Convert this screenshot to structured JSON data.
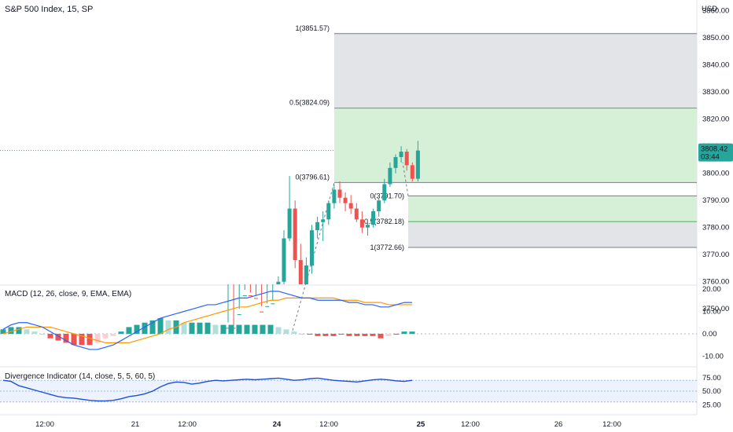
{
  "header": {
    "title": "S&P 500 Index, 15, SP",
    "currency": "USD"
  },
  "colors": {
    "up": "#26a69a",
    "down": "#ef5350",
    "fib_green": "#4caf50",
    "fib_green_fill": "#d6f0d8",
    "fib_grey_fill": "#e3e4e8",
    "macd_line": "#2962ff",
    "signal_line": "#ff9800",
    "divergence_line": "#1e4fd8",
    "price_tag": "#26a69a"
  },
  "price_pane": {
    "y_ticks": [
      "3850.00",
      "3840.00",
      "3830.00",
      "3820.00",
      "3810.00",
      "3800.00",
      "3790.00",
      "3780.00",
      "3770.00",
      "3760.00",
      "3750.00"
    ],
    "top_cut_tick": "3860.00",
    "last_price": "3808.42",
    "countdown": "03:44",
    "candles": [
      [
        3741,
        3745,
        3738,
        3743
      ],
      [
        3743,
        3744,
        3737,
        3739
      ],
      [
        3739,
        3750,
        3738,
        3748
      ],
      [
        3748,
        3757,
        3746,
        3755
      ],
      [
        3755,
        3756,
        3750,
        3754
      ],
      [
        3754,
        3755,
        3748,
        3749
      ],
      [
        3749,
        3751,
        3744,
        3746
      ],
      [
        3746,
        3752,
        3744,
        3751
      ],
      [
        3751,
        3753,
        3748,
        3752
      ],
      [
        3752,
        3762,
        3751,
        3760
      ],
      [
        3760,
        3779,
        3759,
        3776
      ],
      [
        3776,
        3799,
        3775,
        3787
      ],
      [
        3787,
        3790,
        3765,
        3768
      ],
      [
        3768,
        3774,
        3744,
        3758
      ],
      [
        3758,
        3769,
        3752,
        3766
      ],
      [
        3766,
        3781,
        3763,
        3779
      ],
      [
        3779,
        3784,
        3776,
        3782
      ],
      [
        3782,
        3786,
        3775,
        3783
      ],
      [
        3783,
        3790,
        3781,
        3789
      ],
      [
        3789,
        3796,
        3787,
        3794
      ],
      [
        3794,
        3797,
        3789,
        3791
      ],
      [
        3791,
        3793,
        3786,
        3789
      ],
      [
        3789,
        3792,
        3785,
        3787
      ],
      [
        3787,
        3789,
        3782,
        3783
      ],
      [
        3783,
        3786,
        3778,
        3780
      ],
      [
        3780,
        3783,
        3777,
        3781
      ],
      [
        3781,
        3787,
        3780,
        3786
      ],
      [
        3786,
        3791,
        3784,
        3790
      ],
      [
        3790,
        3798,
        3789,
        3796
      ],
      [
        3796,
        3804,
        3795,
        3802
      ],
      [
        3802,
        3807,
        3800,
        3806
      ],
      [
        3806,
        3810,
        3804,
        3808
      ],
      [
        3808,
        3809,
        3801,
        3803
      ],
      [
        3803,
        3804,
        3797,
        3798
      ],
      [
        3798,
        3812,
        3797,
        3808.42
      ]
    ],
    "fib_upper": {
      "level_1_label": "1(3851.57)",
      "level_05_label": "0.5(3824.09)",
      "level_0_label": "0(3796.61)",
      "level_1": 3851.57,
      "level_05": 3824.09,
      "level_0": 3796.61
    },
    "fib_lower": {
      "level_0_label": "0(3791.70)",
      "level_05_label": "0.5(3782.18)",
      "level_1_label": "1(3772.66)",
      "level_0": 3791.7,
      "level_05": 3782.18,
      "level_1": 3772.66
    }
  },
  "macd_pane": {
    "label": "MACD (12, 26, close, 9, EMA, EMA)",
    "y_ticks": [
      "20.00",
      "10.00",
      "0.00",
      "-10.00"
    ],
    "macd": [
      2,
      4,
      5,
      5,
      4,
      3,
      1,
      -1,
      -3,
      -5,
      -6,
      -7,
      -7,
      -6,
      -5,
      -3,
      -1,
      1,
      3,
      5,
      7,
      8,
      9,
      10,
      11,
      12,
      13,
      13,
      14,
      15,
      16,
      16,
      17,
      18,
      19,
      19,
      18,
      17,
      16,
      16,
      15,
      15,
      15,
      15,
      14,
      14,
      13,
      13,
      12,
      12,
      13,
      14,
      14
    ],
    "signal": [
      0,
      1,
      2,
      3,
      3,
      3,
      3,
      2,
      1,
      0,
      -1,
      -2,
      -3,
      -4,
      -4,
      -4,
      -4,
      -3,
      -2,
      -1,
      0,
      2,
      3,
      5,
      6,
      7,
      8,
      9,
      10,
      11,
      12,
      12,
      13,
      14,
      15,
      15,
      16,
      16,
      16,
      16,
      16,
      16,
      16,
      15,
      15,
      15,
      14,
      14,
      14,
      13,
      13,
      13,
      13
    ],
    "hist": [
      2,
      3,
      3,
      2,
      1,
      0,
      -2,
      -3,
      -4,
      -5,
      -5,
      -5,
      -4,
      -2,
      -1,
      1,
      3,
      4,
      5,
      6,
      7,
      6,
      6,
      5,
      5,
      5,
      5,
      4,
      4,
      4,
      4,
      4,
      4,
      4,
      4,
      3,
      2,
      1,
      0,
      0,
      -1,
      -1,
      -1,
      0,
      -1,
      -1,
      -1,
      -1,
      -2,
      -1,
      0,
      1,
      1
    ]
  },
  "divergence_pane": {
    "label": "Divergence Indicator (14, close, 5, 5, 60, 5)",
    "y_ticks": [
      "75.00",
      "50.00",
      "25.00"
    ],
    "values": [
      70,
      68,
      60,
      56,
      52,
      48,
      44,
      40,
      38,
      37,
      35,
      33,
      32,
      32,
      33,
      36,
      40,
      42,
      45,
      50,
      58,
      64,
      67,
      66,
      63,
      65,
      68,
      70,
      69,
      70,
      71,
      72,
      71,
      72,
      73,
      74,
      72,
      70,
      71,
      73,
      74,
      72,
      70,
      69,
      68,
      67,
      69,
      71,
      72,
      71,
      69,
      68,
      70
    ]
  },
  "x_axis": {
    "labels": [
      "12:00",
      "21",
      "12:00",
      "24",
      "12:00",
      "25",
      "12:00",
      "26",
      "12:00"
    ]
  }
}
